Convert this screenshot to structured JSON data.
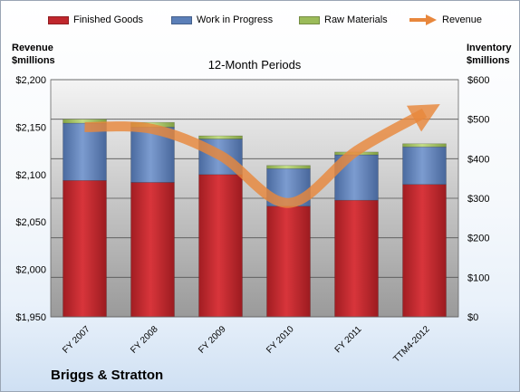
{
  "chart_data": {
    "type": "bar",
    "title": "12-Month Periods",
    "subtitle": "Briggs & Stratton",
    "categories": [
      "FY 2007",
      "FY 2008",
      "FY 2009",
      "FY 2010",
      "FY 2011",
      "TTM4-2012"
    ],
    "series": [
      {
        "name": "Finished Goods",
        "axis": "right",
        "stacked": true,
        "color": "#c0272d",
        "values": [
          345,
          340,
          360,
          280,
          295,
          335
        ]
      },
      {
        "name": "Work in Progress",
        "axis": "right",
        "stacked": true,
        "color": "#5b7fb8",
        "values": [
          145,
          140,
          90,
          95,
          115,
          95
        ]
      },
      {
        "name": "Raw Materials",
        "axis": "right",
        "stacked": true,
        "color": "#9bbb59",
        "values": [
          10,
          12,
          8,
          8,
          7,
          8
        ]
      },
      {
        "name": "Revenue",
        "axis": "left",
        "type": "line",
        "color": "#e8873c",
        "values": [
          2150,
          2148,
          2120,
          2070,
          2125,
          2165
        ]
      }
    ],
    "ylabel_left": "Revenue\n$millions",
    "ylabel_right": "Inventory\n$millions",
    "ylim_left": [
      1950,
      2200
    ],
    "ylim_right": [
      0,
      600
    ],
    "yticks_left": [
      "$1,950",
      "$2,000",
      "$2,050",
      "$2,100",
      "$2,150",
      "$2,200"
    ],
    "yticks_right": [
      "$0",
      "$100",
      "$200",
      "$300",
      "$400",
      "$500",
      "$600"
    ],
    "legend_placement": "top",
    "grid": true
  },
  "labels": {
    "ylabel_left_line1": "Revenue",
    "ylabel_left_line2": "$millions",
    "ylabel_right_line1": "Inventory",
    "ylabel_right_line2": "$millions",
    "company": "Briggs & Stratton"
  }
}
